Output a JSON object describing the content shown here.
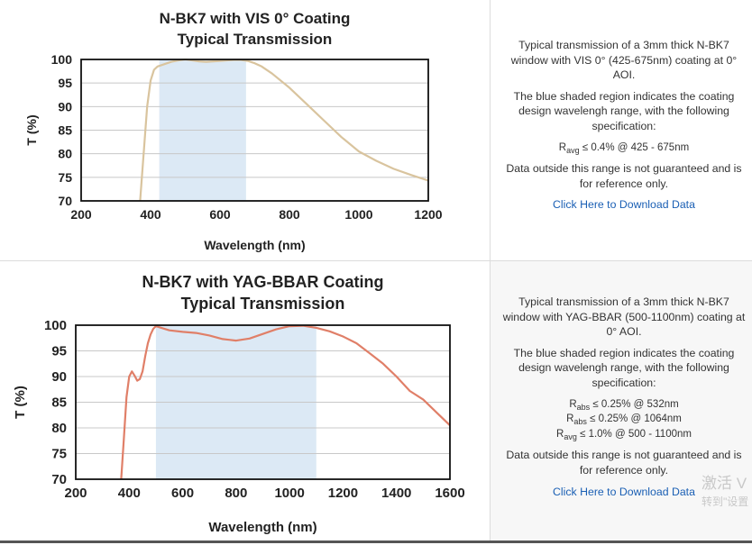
{
  "charts": [
    {
      "type": "line",
      "title_line1": "N-BK7 with VIS 0° Coating",
      "title_line2": "Typical Transmission",
      "xlabel": "Wavelength (nm)",
      "ylabel": "T (%)",
      "xlim": [
        200,
        1200
      ],
      "ylim": [
        70,
        100
      ],
      "xticks": [
        "200",
        "400",
        "600",
        "800",
        "1000",
        "1200"
      ],
      "yticks": [
        "70",
        "75",
        "80",
        "85",
        "90",
        "95",
        "100"
      ],
      "shaded_region": [
        425,
        675
      ],
      "line_color": "#d9c49e",
      "shade_color": "#dce9f5",
      "x": [
        370,
        380,
        390,
        400,
        410,
        420,
        440,
        460,
        480,
        500,
        520,
        540,
        560,
        580,
        600,
        620,
        640,
        660,
        680,
        700,
        720,
        750,
        800,
        850,
        900,
        950,
        1000,
        1050,
        1100,
        1150,
        1200
      ],
      "y": [
        70,
        80,
        90,
        95.5,
        97.8,
        98.5,
        99,
        99.5,
        99.8,
        100,
        99.8,
        99.6,
        99.5,
        99.6,
        99.7,
        99.8,
        99.9,
        99.9,
        99.7,
        99.2,
        98.5,
        97,
        94,
        90.5,
        87,
        83.5,
        80.5,
        78.5,
        76.8,
        75.5,
        74.3
      ]
    },
    {
      "type": "line",
      "title_line1": "N-BK7 with YAG-BBAR Coating",
      "title_line2": "Typical Transmission",
      "xlabel": "Wavelength (nm)",
      "ylabel": "T (%)",
      "xlim": [
        200,
        1600
      ],
      "ylim": [
        70,
        100
      ],
      "xticks": [
        "200",
        "400",
        "600",
        "800",
        "1000",
        "1200",
        "1400",
        "1600"
      ],
      "yticks": [
        "70",
        "75",
        "80",
        "85",
        "90",
        "95",
        "100"
      ],
      "shaded_region": [
        500,
        1100
      ],
      "line_color": "#e07f68",
      "shade_color": "#dce9f5",
      "x": [
        370,
        380,
        390,
        400,
        410,
        420,
        430,
        440,
        450,
        460,
        470,
        480,
        490,
        500,
        520,
        550,
        600,
        650,
        700,
        750,
        800,
        850,
        900,
        950,
        1000,
        1050,
        1100,
        1150,
        1200,
        1250,
        1300,
        1350,
        1400,
        1450,
        1500,
        1550,
        1600
      ],
      "y": [
        70,
        78,
        86,
        90,
        91,
        90.2,
        89.2,
        89.5,
        91,
        94,
        96.5,
        98.2,
        99.3,
        99.8,
        99.5,
        99,
        98.7,
        98.5,
        98,
        97.3,
        97,
        97.4,
        98.3,
        99.2,
        99.8,
        99.9,
        99.5,
        98.8,
        97.8,
        96.5,
        94.5,
        92.5,
        90,
        87.2,
        85.5,
        83,
        80.5
      ]
    }
  ],
  "descriptions": [
    {
      "p1": "Typical transmission of a 3mm thick N-BK7 window with VIS 0° (425-675nm) coating at 0° AOI.",
      "p2": "The blue shaded region indicates the coating design wavelengh range, with the following specification:",
      "specs": [
        {
          "sym": "R",
          "sub": "avg",
          "text": "≤ 0.4% @ 425 - 675nm"
        }
      ],
      "p3": "Data outside this range is not guaranteed and is for reference only.",
      "link": "Click Here to Download Data"
    },
    {
      "p1": "Typical transmission of a 3mm thick N-BK7 window with YAG-BBAR (500-1100nm) coating at 0° AOI.",
      "p2": "The blue shaded region indicates the coating design wavelengh range, with the following specification:",
      "specs": [
        {
          "sym": "R",
          "sub": "abs",
          "text": "≤ 0.25% @ 532nm"
        },
        {
          "sym": "R",
          "sub": "abs",
          "text": "≤ 0.25% @ 1064nm"
        },
        {
          "sym": "R",
          "sub": "avg",
          "text": "≤ 1.0% @ 500 - 1100nm"
        }
      ],
      "p3": "Data outside this range is not guaranteed and is for reference only.",
      "link": "Click Here to Download Data"
    }
  ],
  "watermark": {
    "line1": "激活 V",
    "line2": "转到\"设置"
  }
}
